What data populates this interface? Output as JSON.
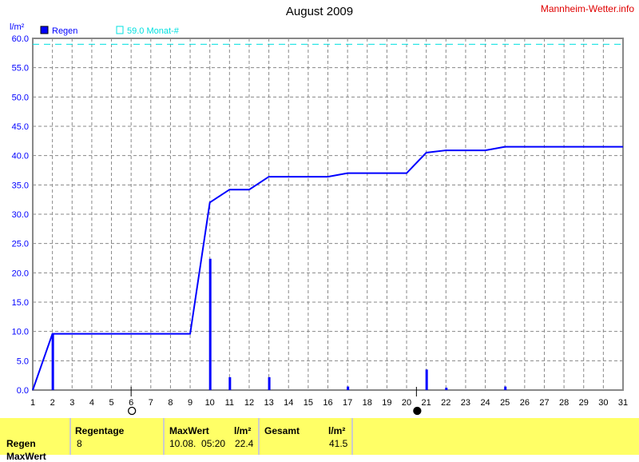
{
  "header": {
    "title": "August 2009",
    "brand": "Mannheim-Wetter.info"
  },
  "chart_data": {
    "type": "bar",
    "title": "August 2009",
    "ylabel": "l/m²",
    "ylim": [
      0,
      60
    ],
    "xlim": [
      1,
      31
    ],
    "yticks": [
      "0.0",
      "5.0",
      "10.0",
      "15.0",
      "20.0",
      "25.0",
      "30.0",
      "35.0",
      "40.0",
      "45.0",
      "50.0",
      "55.0",
      "60.0"
    ],
    "xticks": [
      "1",
      "2",
      "3",
      "4",
      "5",
      "6",
      "7",
      "8",
      "9",
      "10",
      "11",
      "12",
      "13",
      "14",
      "15",
      "16",
      "17",
      "18",
      "19",
      "20",
      "21",
      "22",
      "23",
      "24",
      "25",
      "26",
      "27",
      "28",
      "29",
      "30",
      "31"
    ],
    "grid": true,
    "legend": {
      "placement": "top-left",
      "entries": [
        "Regen",
        "59.0 Monat-#"
      ]
    },
    "series": [
      {
        "name": "Regen",
        "kind": "bar",
        "color": "#0000ff",
        "points": [
          [
            2,
            9.6
          ],
          [
            10,
            22.4
          ],
          [
            11,
            2.2
          ],
          [
            13,
            2.2
          ],
          [
            17,
            0.6
          ],
          [
            21,
            3.5
          ],
          [
            22,
            0.4
          ],
          [
            25,
            0.6
          ]
        ]
      },
      {
        "kind": "line",
        "color": "#0000ff",
        "points": [
          [
            1,
            0
          ],
          [
            2,
            9.6
          ],
          [
            9,
            9.6
          ],
          [
            10,
            32.0
          ],
          [
            11,
            34.2
          ],
          [
            12,
            34.2
          ],
          [
            13,
            36.4
          ],
          [
            16,
            36.4
          ],
          [
            17,
            37.0
          ],
          [
            20,
            37.0
          ],
          [
            21,
            40.5
          ],
          [
            22,
            40.9
          ],
          [
            24,
            40.9
          ],
          [
            25,
            41.5
          ],
          [
            31,
            41.5
          ]
        ]
      },
      {
        "name": "59.0 Monat-#",
        "kind": "reference",
        "color": "#00e0e0",
        "value": 59.0
      }
    ],
    "moon_phases": [
      {
        "day": 6,
        "phase": "full-moon"
      },
      {
        "day": 20.5,
        "phase": "new-moon"
      }
    ]
  },
  "table": {
    "row_label": "Regen",
    "row2_label": "MaxWert",
    "regentage_label": "Regentage",
    "regentage": "8",
    "maxwert_label": "MaxWert",
    "unit": "l/m²",
    "maxwert_time": "10.08.  05:20",
    "maxwert": "22.4",
    "gesamt_label": "Gesamt",
    "gesamt": "41.5"
  }
}
